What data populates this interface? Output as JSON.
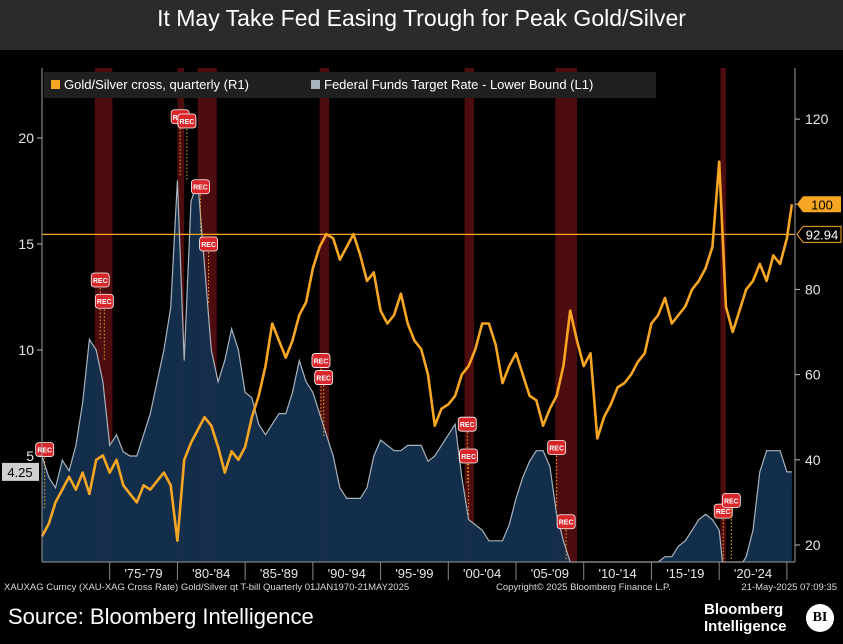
{
  "title": "It May Take Fed Easing Trough for Peak Gold/Silver",
  "footer": {
    "left": "XAUXAG Curncy (XAU-XAG Cross Rate) Gold/Silver qt T-bill  Quarterly 01JAN1970-21MAY2025",
    "copyright": "Copyright© 2025 Bloomberg Finance L.P.",
    "date": "21-May-2025 07:09:35"
  },
  "source": "Source: Bloomberg Intelligence",
  "logo": {
    "line1": "Bloomberg",
    "line2": "Intelligence",
    "badge": "BI"
  },
  "colors": {
    "gold": "#f6a623",
    "fed_line": "#a9b3bd",
    "fed_area": "#14304f",
    "recession": "#5a0e10",
    "rec_marker": "#d9262b"
  },
  "chart_data": {
    "type": "area",
    "series": [
      {
        "name": "Gold/Silver cross, quarterly (R1)",
        "axis": "right",
        "type": "line",
        "points": [
          [
            1970.0,
            22
          ],
          [
            1970.5,
            25
          ],
          [
            1971.0,
            30
          ],
          [
            1971.5,
            33
          ],
          [
            1972.0,
            36
          ],
          [
            1972.5,
            33
          ],
          [
            1973.0,
            37
          ],
          [
            1973.5,
            32
          ],
          [
            1974.0,
            40
          ],
          [
            1974.5,
            41
          ],
          [
            1975.0,
            37
          ],
          [
            1975.5,
            40
          ],
          [
            1976.0,
            34
          ],
          [
            1976.5,
            32
          ],
          [
            1977.0,
            30
          ],
          [
            1977.5,
            34
          ],
          [
            1978.0,
            33
          ],
          [
            1978.5,
            35
          ],
          [
            1979.0,
            37
          ],
          [
            1979.5,
            34
          ],
          [
            1980.0,
            21
          ],
          [
            1980.5,
            40
          ],
          [
            1981.0,
            44
          ],
          [
            1981.5,
            47
          ],
          [
            1982.0,
            50
          ],
          [
            1982.5,
            48
          ],
          [
            1983.0,
            43
          ],
          [
            1983.5,
            37
          ],
          [
            1984.0,
            42
          ],
          [
            1984.5,
            40
          ],
          [
            1985.0,
            43
          ],
          [
            1985.5,
            50
          ],
          [
            1986.0,
            55
          ],
          [
            1986.5,
            62
          ],
          [
            1987.0,
            72
          ],
          [
            1987.5,
            68
          ],
          [
            1988.0,
            64
          ],
          [
            1988.5,
            68
          ],
          [
            1989.0,
            74
          ],
          [
            1989.5,
            77
          ],
          [
            1990.0,
            85
          ],
          [
            1990.5,
            90
          ],
          [
            1991.0,
            93
          ],
          [
            1991.5,
            92
          ],
          [
            1992.0,
            87
          ],
          [
            1992.5,
            90
          ],
          [
            1993.0,
            93
          ],
          [
            1993.5,
            88
          ],
          [
            1994.0,
            82
          ],
          [
            1994.5,
            84
          ],
          [
            1995.0,
            75
          ],
          [
            1995.5,
            72
          ],
          [
            1996.0,
            74
          ],
          [
            1996.5,
            79
          ],
          [
            1997.0,
            72
          ],
          [
            1997.5,
            68
          ],
          [
            1998.0,
            66
          ],
          [
            1998.5,
            60
          ],
          [
            1999.0,
            48
          ],
          [
            1999.5,
            52
          ],
          [
            2000.0,
            53
          ],
          [
            2000.5,
            55
          ],
          [
            2001.0,
            60
          ],
          [
            2001.5,
            62
          ],
          [
            2002.0,
            66
          ],
          [
            2002.5,
            72
          ],
          [
            2003.0,
            72
          ],
          [
            2003.5,
            67
          ],
          [
            2004.0,
            58
          ],
          [
            2004.5,
            62
          ],
          [
            2005.0,
            65
          ],
          [
            2005.5,
            60
          ],
          [
            2006.0,
            55
          ],
          [
            2006.5,
            54
          ],
          [
            2007.0,
            48
          ],
          [
            2007.5,
            52
          ],
          [
            2008.0,
            55
          ],
          [
            2008.5,
            62
          ],
          [
            2009.0,
            75
          ],
          [
            2009.5,
            68
          ],
          [
            2010.0,
            62
          ],
          [
            2010.5,
            65
          ],
          [
            2011.0,
            45
          ],
          [
            2011.5,
            50
          ],
          [
            2012.0,
            53
          ],
          [
            2012.5,
            57
          ],
          [
            2013.0,
            58
          ],
          [
            2013.5,
            60
          ],
          [
            2014.0,
            63
          ],
          [
            2014.5,
            65
          ],
          [
            2015.0,
            72
          ],
          [
            2015.5,
            74
          ],
          [
            2016.0,
            78
          ],
          [
            2016.5,
            72
          ],
          [
            2017.0,
            74
          ],
          [
            2017.5,
            76
          ],
          [
            2018.0,
            80
          ],
          [
            2018.5,
            82
          ],
          [
            2019.0,
            85
          ],
          [
            2019.5,
            90
          ],
          [
            2020.0,
            110
          ],
          [
            2020.5,
            76
          ],
          [
            2021.0,
            70
          ],
          [
            2021.5,
            75
          ],
          [
            2022.0,
            80
          ],
          [
            2022.5,
            82
          ],
          [
            2023.0,
            86
          ],
          [
            2023.5,
            82
          ],
          [
            2024.0,
            88
          ],
          [
            2024.5,
            86
          ],
          [
            2025.0,
            92
          ],
          [
            2025.37,
            100
          ]
        ]
      },
      {
        "name": "Federal Funds Target Rate - Lower Bound (L1)",
        "axis": "left",
        "type": "area",
        "points": [
          [
            1970.0,
            5.0
          ],
          [
            1970.5,
            4.0
          ],
          [
            1971.0,
            3.5
          ],
          [
            1971.5,
            4.8
          ],
          [
            1972.0,
            4.3
          ],
          [
            1972.5,
            5.5
          ],
          [
            1973.0,
            7.5
          ],
          [
            1973.5,
            10.5
          ],
          [
            1974.0,
            10.0
          ],
          [
            1974.5,
            8.5
          ],
          [
            1975.0,
            5.5
          ],
          [
            1975.5,
            6.0
          ],
          [
            1976.0,
            5.2
          ],
          [
            1976.5,
            5.0
          ],
          [
            1977.0,
            5.0
          ],
          [
            1977.5,
            6.0
          ],
          [
            1978.0,
            7.0
          ],
          [
            1978.5,
            8.5
          ],
          [
            1979.0,
            10.0
          ],
          [
            1979.5,
            12.0
          ],
          [
            1980.0,
            18.0
          ],
          [
            1980.5,
            9.5
          ],
          [
            1981.0,
            17.0
          ],
          [
            1981.5,
            18.0
          ],
          [
            1982.0,
            14.0
          ],
          [
            1982.5,
            10.0
          ],
          [
            1983.0,
            8.5
          ],
          [
            1983.5,
            9.5
          ],
          [
            1984.0,
            11.0
          ],
          [
            1984.5,
            10.0
          ],
          [
            1985.0,
            8.0
          ],
          [
            1985.5,
            7.75
          ],
          [
            1986.0,
            6.5
          ],
          [
            1986.5,
            6.0
          ],
          [
            1987.0,
            6.5
          ],
          [
            1987.5,
            7.0
          ],
          [
            1988.0,
            7.0
          ],
          [
            1988.5,
            8.0
          ],
          [
            1989.0,
            9.5
          ],
          [
            1989.5,
            8.5
          ],
          [
            1990.0,
            8.0
          ],
          [
            1990.5,
            7.0
          ],
          [
            1991.0,
            6.0
          ],
          [
            1991.5,
            5.0
          ],
          [
            1992.0,
            3.5
          ],
          [
            1992.5,
            3.0
          ],
          [
            1993.0,
            3.0
          ],
          [
            1993.5,
            3.0
          ],
          [
            1994.0,
            3.5
          ],
          [
            1994.5,
            5.0
          ],
          [
            1995.0,
            5.75
          ],
          [
            1995.5,
            5.5
          ],
          [
            1996.0,
            5.25
          ],
          [
            1996.5,
            5.25
          ],
          [
            1997.0,
            5.5
          ],
          [
            1997.5,
            5.5
          ],
          [
            1998.0,
            5.5
          ],
          [
            1998.5,
            4.75
          ],
          [
            1999.0,
            5.0
          ],
          [
            1999.5,
            5.5
          ],
          [
            2000.0,
            6.0
          ],
          [
            2000.5,
            6.5
          ],
          [
            2001.0,
            4.0
          ],
          [
            2001.5,
            2.0
          ],
          [
            2002.0,
            1.75
          ],
          [
            2002.5,
            1.5
          ],
          [
            2003.0,
            1.0
          ],
          [
            2003.5,
            1.0
          ],
          [
            2004.0,
            1.0
          ],
          [
            2004.5,
            1.75
          ],
          [
            2005.0,
            3.0
          ],
          [
            2005.5,
            4.0
          ],
          [
            2006.0,
            4.75
          ],
          [
            2006.5,
            5.25
          ],
          [
            2007.0,
            5.25
          ],
          [
            2007.5,
            4.5
          ],
          [
            2008.0,
            2.25
          ],
          [
            2008.5,
            1.0
          ],
          [
            2009.0,
            0.0
          ],
          [
            2010.0,
            0.0
          ],
          [
            2011.0,
            0.0
          ],
          [
            2012.0,
            0.0
          ],
          [
            2013.0,
            0.0
          ],
          [
            2014.0,
            0.0
          ],
          [
            2015.0,
            0.0
          ],
          [
            2015.5,
            0.0
          ],
          [
            2016.0,
            0.25
          ],
          [
            2016.5,
            0.25
          ],
          [
            2017.0,
            0.75
          ],
          [
            2017.5,
            1.0
          ],
          [
            2018.0,
            1.5
          ],
          [
            2018.5,
            2.0
          ],
          [
            2019.0,
            2.25
          ],
          [
            2019.5,
            2.0
          ],
          [
            2020.0,
            1.5
          ],
          [
            2020.25,
            0.0
          ],
          [
            2021.0,
            0.0
          ],
          [
            2021.75,
            0.0
          ],
          [
            2022.0,
            0.25
          ],
          [
            2022.5,
            1.5
          ],
          [
            2023.0,
            4.25
          ],
          [
            2023.5,
            5.25
          ],
          [
            2024.0,
            5.25
          ],
          [
            2024.5,
            5.25
          ],
          [
            2025.0,
            4.25
          ],
          [
            2025.37,
            4.25
          ]
        ]
      }
    ],
    "y_left": {
      "min": 0,
      "max": 23.3,
      "ticks": [
        5,
        10,
        15,
        20
      ]
    },
    "y_right": {
      "min": 16,
      "max": 132,
      "ticks": [
        20,
        40,
        60,
        80,
        100,
        120
      ]
    },
    "x_range": [
      1970,
      2025.6
    ],
    "x_tick_labels": [
      {
        "label": "'75-'79",
        "x": 1977.5
      },
      {
        "label": "'80-'84",
        "x": 1982.5
      },
      {
        "label": "'85-'89",
        "x": 1987.5
      },
      {
        "label": "'90-'94",
        "x": 1992.5
      },
      {
        "label": "'95-'99",
        "x": 1997.5
      },
      {
        "label": "'00-'04",
        "x": 2002.5
      },
      {
        "label": "'05-'09",
        "x": 2007.5
      },
      {
        "label": "'10-'14",
        "x": 2012.5
      },
      {
        "label": "'15-'19",
        "x": 2017.5
      },
      {
        "label": "'20-'24",
        "x": 2022.5
      }
    ],
    "x_separators": [
      1975,
      1980,
      1985,
      1990,
      1995,
      2000,
      2005,
      2010,
      2015,
      2020,
      2025
    ],
    "recessions": [
      [
        1973.9,
        1975.2
      ],
      [
        1980.0,
        1980.5
      ],
      [
        1981.5,
        1982.9
      ],
      [
        1990.5,
        1991.2
      ],
      [
        2001.2,
        2001.9
      ],
      [
        2007.9,
        2009.5
      ],
      [
        2020.1,
        2020.5
      ]
    ],
    "rec_markers": [
      {
        "label": "REC",
        "x": 1970.2,
        "y": 5.3
      },
      {
        "label": "REC",
        "x": 1974.3,
        "y": 13.3
      },
      {
        "label": "REC",
        "x": 1974.6,
        "y": 12.3
      },
      {
        "label": "REC",
        "x": 1980.2,
        "y": 21.0
      },
      {
        "label": "REC",
        "x": 1980.7,
        "y": 20.8
      },
      {
        "label": "REC",
        "x": 1981.7,
        "y": 17.7
      },
      {
        "label": "REC",
        "x": 1982.3,
        "y": 15.0
      },
      {
        "label": "REC",
        "x": 1990.6,
        "y": 9.5
      },
      {
        "label": "REC",
        "x": 1990.8,
        "y": 8.7
      },
      {
        "label": "REC",
        "x": 2001.4,
        "y": 6.5
      },
      {
        "label": "REC",
        "x": 2001.5,
        "y": 5.0
      },
      {
        "label": "REC",
        "x": 2008.0,
        "y": 5.4
      },
      {
        "label": "REC",
        "x": 2008.7,
        "y": 1.9
      },
      {
        "label": "REC",
        "x": 2020.3,
        "y": 2.4
      },
      {
        "label": "REC",
        "x": 2020.9,
        "y": 2.9
      }
    ],
    "h_line": {
      "axis": "right",
      "value": 92.94,
      "label": "92.94"
    },
    "last_value_labels": [
      {
        "axis": "right",
        "value": 100,
        "label": "100"
      },
      {
        "axis": "left",
        "value": 4.25,
        "label": "4.25"
      }
    ],
    "legend_position": "top-left",
    "grid": false
  }
}
